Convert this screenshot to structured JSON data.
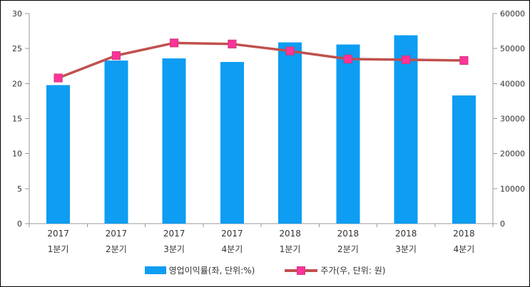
{
  "chart_data": {
    "type": "combo",
    "categories": [
      {
        "line1": "2017",
        "line2": "1분기"
      },
      {
        "line1": "2017",
        "line2": "2분기"
      },
      {
        "line1": "2017",
        "line2": "3분기"
      },
      {
        "line1": "2017",
        "line2": "4분기"
      },
      {
        "line1": "2018",
        "line2": "1분기"
      },
      {
        "line1": "2018",
        "line2": "2분기"
      },
      {
        "line1": "2018",
        "line2": "3분기"
      },
      {
        "line1": "2018",
        "line2": "4분기"
      }
    ],
    "series": [
      {
        "name": "영업이익률(좌, 단위:%)",
        "type": "bar",
        "axis": "left",
        "color": "#0d9df2",
        "values": [
          19.8,
          23.3,
          23.6,
          23.1,
          25.9,
          25.6,
          26.9,
          18.3
        ]
      },
      {
        "name": "주가(우, 단위: 원)",
        "type": "line",
        "axis": "right",
        "color": "#c0504d",
        "marker_shape": "square",
        "marker_fill": "#ff3399",
        "marker_stroke": "#d13b80",
        "values": [
          41600,
          48000,
          51600,
          51300,
          49300,
          47000,
          46800,
          46600
        ]
      }
    ],
    "left_axis": {
      "min": 0,
      "max": 30,
      "step": 5,
      "tick_labels": [
        "0",
        "5",
        "10",
        "15",
        "20",
        "25",
        "30"
      ]
    },
    "right_axis": {
      "min": 0,
      "max": 60000,
      "step": 10000,
      "tick_labels": [
        "0",
        "10000",
        "20000",
        "30000",
        "40000",
        "50000",
        "60000"
      ]
    },
    "grid": false,
    "legend_position": "bottom",
    "axis_color": "#999999",
    "text_color": "#333333"
  }
}
